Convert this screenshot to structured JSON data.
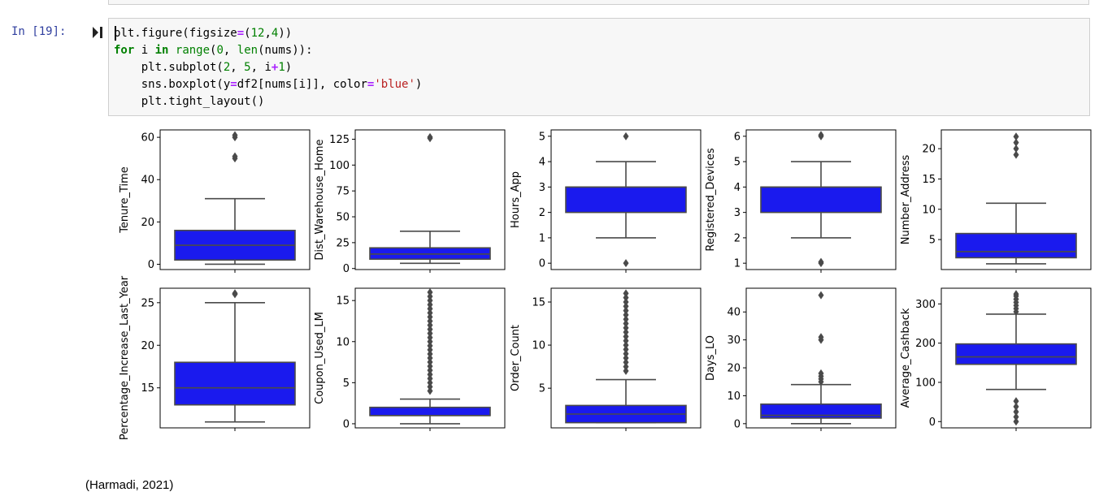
{
  "notebook": {
    "prompt": "In [19]:",
    "code_lines": [
      [
        {
          "t": "plt.figure(figsize",
          "c": ""
        },
        {
          "t": "=",
          "c": "op"
        },
        {
          "t": "(",
          "c": ""
        },
        {
          "t": "12",
          "c": "nm"
        },
        {
          "t": ",",
          "c": ""
        },
        {
          "t": "4",
          "c": "nm"
        },
        {
          "t": "))",
          "c": ""
        }
      ],
      [
        {
          "t": "for",
          "c": "kw"
        },
        {
          "t": " i ",
          "c": ""
        },
        {
          "t": "in",
          "c": "kw"
        },
        {
          "t": " ",
          "c": ""
        },
        {
          "t": "range",
          "c": "bi"
        },
        {
          "t": "(",
          "c": ""
        },
        {
          "t": "0",
          "c": "nm"
        },
        {
          "t": ", ",
          "c": ""
        },
        {
          "t": "len",
          "c": "bi"
        },
        {
          "t": "(nums)):",
          "c": ""
        }
      ],
      [
        {
          "t": "    plt.subplot(",
          "c": ""
        },
        {
          "t": "2",
          "c": "nm"
        },
        {
          "t": ", ",
          "c": ""
        },
        {
          "t": "5",
          "c": "nm"
        },
        {
          "t": ", i",
          "c": ""
        },
        {
          "t": "+",
          "c": "op"
        },
        {
          "t": "1",
          "c": "nm"
        },
        {
          "t": ")",
          "c": ""
        }
      ],
      [
        {
          "t": "    sns.boxplot(y",
          "c": ""
        },
        {
          "t": "=",
          "c": "op"
        },
        {
          "t": "df2[nums[i]], color",
          "c": ""
        },
        {
          "t": "=",
          "c": "op"
        },
        {
          "t": "'blue'",
          "c": "st"
        },
        {
          "t": ")",
          "c": ""
        }
      ],
      [
        {
          "t": "    plt.tight_layout()",
          "c": ""
        }
      ]
    ],
    "footer_text": "(Harmadi, 2021)"
  },
  "colors": {
    "box_fill": "#1a1aee",
    "line": "#4a4a4a",
    "prompt": "#303f9f"
  },
  "chart_data": [
    {
      "type": "boxplot",
      "ylabel": "Tenure_Time",
      "yticks": [
        0,
        20,
        40,
        60
      ],
      "ylim": [
        -2.5,
        63.5
      ],
      "whisker_low": 0,
      "q1": 2,
      "median": 9,
      "q3": 16,
      "whisker_high": 31,
      "outliers": [
        50,
        51,
        60,
        61
      ]
    },
    {
      "type": "boxplot",
      "ylabel": "Dist_Warehouse_Home",
      "yticks": [
        0,
        25,
        50,
        75,
        100,
        125
      ],
      "ylim": [
        -1,
        134
      ],
      "whisker_low": 5,
      "q1": 9,
      "median": 14,
      "q3": 20,
      "whisker_high": 36,
      "outliers": [
        126,
        127
      ]
    },
    {
      "type": "boxplot",
      "ylabel": "Hours_App",
      "yticks": [
        0,
        1,
        2,
        3,
        4,
        5
      ],
      "ylim": [
        -0.25,
        5.25
      ],
      "whisker_low": 1,
      "q1": 2,
      "median": 3,
      "q3": 3,
      "whisker_high": 4,
      "outliers": [
        0,
        5
      ]
    },
    {
      "type": "boxplot",
      "ylabel": "Registered_Devices",
      "yticks": [
        1,
        2,
        3,
        4,
        5,
        6
      ],
      "ylim": [
        0.75,
        6.25
      ],
      "whisker_low": 2,
      "q1": 3,
      "median": 4,
      "q3": 4,
      "whisker_high": 5,
      "outliers": [
        1,
        1.05,
        6,
        6.05
      ]
    },
    {
      "type": "boxplot",
      "ylabel": "Number_Address",
      "yticks": [
        5,
        10,
        15,
        20
      ],
      "ylim": [
        0.05,
        23.1
      ],
      "whisker_low": 1,
      "q1": 2,
      "median": 3,
      "q3": 6,
      "whisker_high": 11,
      "outliers": [
        19,
        20,
        21,
        22
      ]
    },
    {
      "type": "boxplot",
      "ylabel": "Percentage_Increase_Last_Year",
      "yticks": [
        15,
        20,
        25
      ],
      "ylim": [
        10.3,
        26.7
      ],
      "whisker_low": 11,
      "q1": 13,
      "median": 15,
      "q3": 18,
      "whisker_high": 25,
      "outliers": [
        26,
        26.1
      ]
    },
    {
      "type": "boxplot",
      "ylabel": "Coupon_Used_LM",
      "yticks": [
        0,
        5,
        10,
        15
      ],
      "ylim": [
        -0.5,
        16.5
      ],
      "whisker_low": 0,
      "q1": 1,
      "median": 1,
      "q3": 2,
      "whisker_high": 3,
      "outliers": [
        4,
        4.5,
        5,
        5.5,
        6,
        6.5,
        7,
        7.5,
        8,
        8.5,
        9,
        9.5,
        10,
        10.5,
        11,
        11.5,
        12,
        12.5,
        13,
        13.5,
        14,
        14.5,
        15,
        15.5,
        16
      ]
    },
    {
      "type": "boxplot",
      "ylabel": "Order_Count",
      "yticks": [
        5,
        10,
        15
      ],
      "ylim": [
        0.4,
        16.6
      ],
      "whisker_low": 1,
      "q1": 1,
      "median": 2,
      "q3": 3,
      "whisker_high": 6,
      "outliers": [
        7,
        7.5,
        8,
        8.5,
        9,
        9.5,
        10,
        10.5,
        11,
        11.5,
        12,
        12.5,
        13,
        13.5,
        14,
        14.5,
        15,
        15.5,
        16
      ]
    },
    {
      "type": "boxplot",
      "ylabel": "Days_LO",
      "yticks": [
        0,
        10,
        20,
        30,
        40
      ],
      "ylim": [
        -1.5,
        48.5
      ],
      "whisker_low": 0,
      "q1": 2,
      "median": 3,
      "q3": 7,
      "whisker_high": 14,
      "outliers": [
        15,
        16,
        17,
        18,
        30,
        31,
        46
      ]
    },
    {
      "type": "boxplot",
      "ylabel": "Average_Cashback",
      "yticks": [
        0,
        100,
        200,
        300
      ],
      "ylim": [
        -16,
        340
      ],
      "whisker_low": 82,
      "q1": 146,
      "median": 165,
      "q3": 198,
      "whisker_high": 274,
      "outliers": [
        0,
        12,
        25,
        38,
        52,
        280,
        288,
        296,
        304,
        312,
        320,
        325
      ]
    }
  ]
}
